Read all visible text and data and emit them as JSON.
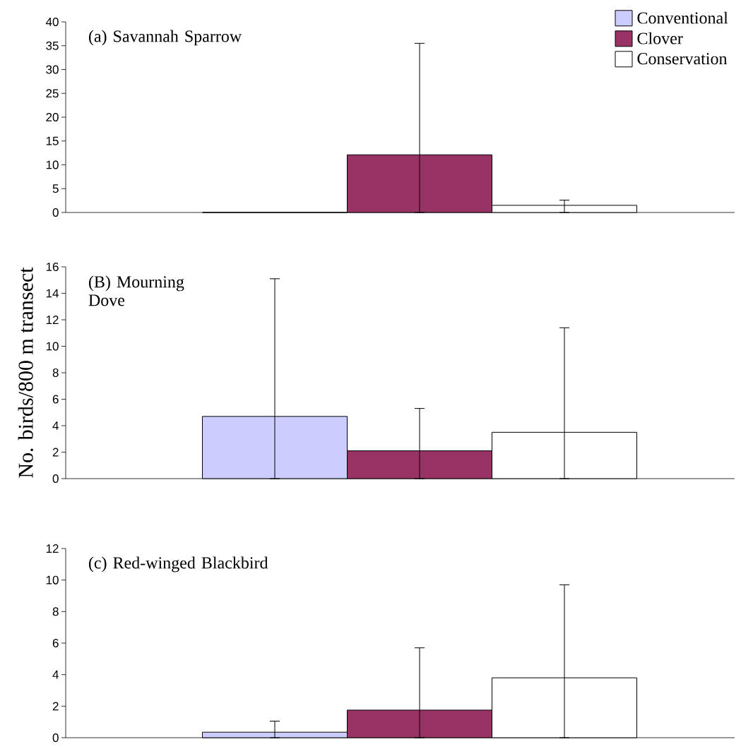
{
  "chart_data": [
    {
      "type": "bar",
      "title": "(a) Savannah Sparrow",
      "categories": [
        null
      ],
      "ylim": [
        0,
        40
      ],
      "yticks": [
        0,
        5,
        10,
        15,
        20,
        25,
        30,
        35,
        40
      ],
      "tick_labels": "y",
      "legend": "top right",
      "series": [
        {
          "name": "Conventional",
          "color": "#ccccff",
          "values": [
            0
          ],
          "errors": [
            null
          ]
        },
        {
          "name": "Clover",
          "color": "#993366",
          "values": [
            12.1
          ],
          "errors": [
            [
              0,
              35.5
            ]
          ]
        },
        {
          "name": "Conservation",
          "color": "#ffffff",
          "values": [
            1.5
          ],
          "errors": [
            [
              0,
              2.6
            ]
          ]
        }
      ]
    },
    {
      "type": "bar",
      "title": "(B) Mourning Dove",
      "ylabel": "No.  birds/800 m transect",
      "categories": [
        null
      ],
      "ylim": [
        0,
        16
      ],
      "yticks": [
        0,
        2,
        4,
        6,
        8,
        10,
        12,
        14,
        16
      ],
      "tick_labels": "y",
      "series": [
        {
          "color": "#ccccff",
          "values": [
            4.7
          ],
          "errors": [
            [
              0,
              15.1
            ]
          ]
        },
        {
          "color": "#993366",
          "values": [
            2.1
          ],
          "errors": [
            [
              0,
              5.3
            ]
          ]
        },
        {
          "color": "#ffffff",
          "values": [
            3.5
          ],
          "errors": [
            [
              0,
              11.4
            ]
          ]
        }
      ]
    },
    {
      "type": "bar",
      "title": "(c) Red-winged Blackbird",
      "categories": [
        null
      ],
      "ylim": [
        0,
        12
      ],
      "yticks": [
        0,
        2,
        4,
        6,
        8,
        10,
        12
      ],
      "tick_labels": "y",
      "series": [
        {
          "color": "#ccccff",
          "values": [
            0.35
          ],
          "errors": [
            [
              0,
              1.05
            ]
          ]
        },
        {
          "color": "#993366",
          "values": [
            1.75
          ],
          "errors": [
            [
              0,
              5.7
            ]
          ]
        },
        {
          "color": "#ffffff",
          "values": [
            3.8
          ],
          "errors": [
            [
              0,
              9.7
            ]
          ]
        }
      ]
    }
  ]
}
